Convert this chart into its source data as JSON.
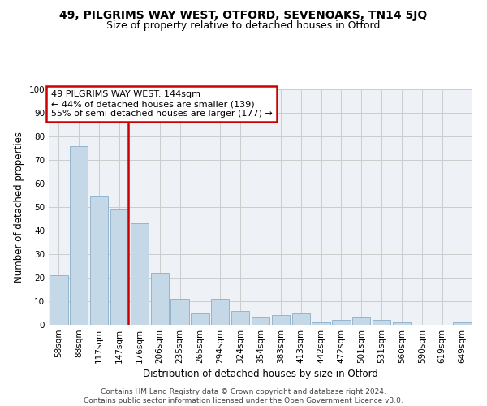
{
  "title1": "49, PILGRIMS WAY WEST, OTFORD, SEVENOAKS, TN14 5JQ",
  "title2": "Size of property relative to detached houses in Otford",
  "xlabel": "Distribution of detached houses by size in Otford",
  "ylabel": "Number of detached properties",
  "categories": [
    "58sqm",
    "88sqm",
    "117sqm",
    "147sqm",
    "176sqm",
    "206sqm",
    "235sqm",
    "265sqm",
    "294sqm",
    "324sqm",
    "354sqm",
    "383sqm",
    "413sqm",
    "442sqm",
    "472sqm",
    "501sqm",
    "531sqm",
    "560sqm",
    "590sqm",
    "619sqm",
    "649sqm"
  ],
  "values": [
    21,
    76,
    55,
    49,
    43,
    22,
    11,
    5,
    11,
    6,
    3,
    4,
    5,
    1,
    2,
    3,
    2,
    1,
    0,
    0,
    1
  ],
  "bar_color": "#c5d8e8",
  "bar_edge_color": "#89aec8",
  "vline_index": 3,
  "vline_color": "#cc0000",
  "annotation_line1": "49 PILGRIMS WAY WEST: 144sqm",
  "annotation_line2": "← 44% of detached houses are smaller (139)",
  "annotation_line3": "55% of semi-detached houses are larger (177) →",
  "annotation_box_color": "#cc0000",
  "annotation_box_bg": "#ffffff",
  "ylim": [
    0,
    100
  ],
  "yticks": [
    0,
    10,
    20,
    30,
    40,
    50,
    60,
    70,
    80,
    90,
    100
  ],
  "grid_color": "#cccccc",
  "bg_color": "#eef2f7",
  "footer": "Contains HM Land Registry data © Crown copyright and database right 2024.\nContains public sector information licensed under the Open Government Licence v3.0.",
  "title1_fontsize": 10,
  "title2_fontsize": 9,
  "xlabel_fontsize": 8.5,
  "ylabel_fontsize": 8.5,
  "tick_fontsize": 7.5,
  "ann_fontsize": 8,
  "footer_fontsize": 6.5
}
